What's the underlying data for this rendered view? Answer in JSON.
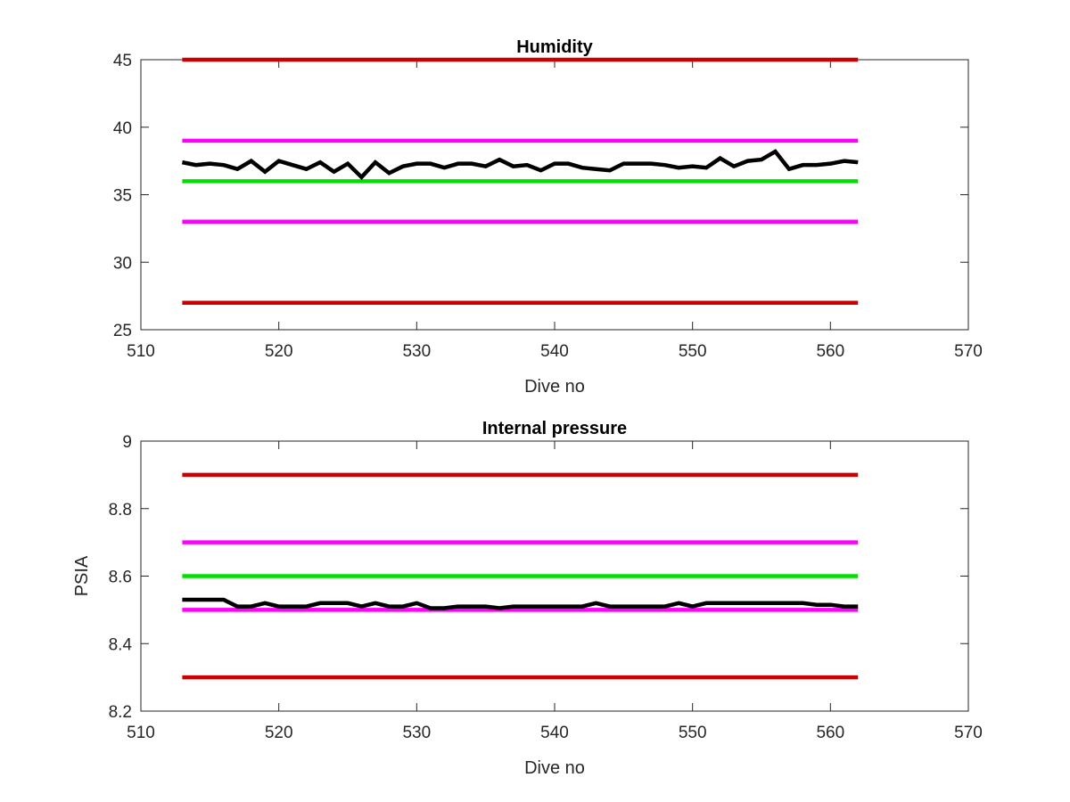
{
  "chart_data": [
    {
      "type": "line",
      "title": "Humidity",
      "xlabel": "Dive no",
      "ylabel": "",
      "xlim": [
        510,
        570
      ],
      "ylim": [
        25,
        45
      ],
      "xticks": [
        510,
        520,
        530,
        540,
        550,
        560,
        570
      ],
      "yticks": [
        25,
        30,
        35,
        40,
        45
      ],
      "grid": false,
      "colors": {
        "red_limit": "#cc0000",
        "magenta_limit": "#ff00ff",
        "green_target": "#00e000",
        "data": "#000000"
      },
      "reference_lines": [
        {
          "y": 45,
          "x": [
            513,
            562
          ],
          "color": "#cc0000"
        },
        {
          "y": 39,
          "x": [
            513,
            562
          ],
          "color": "#ff00ff"
        },
        {
          "y": 36,
          "x": [
            513,
            562
          ],
          "color": "#00e000"
        },
        {
          "y": 33,
          "x": [
            513,
            562
          ],
          "color": "#ff00ff"
        },
        {
          "y": 27,
          "x": [
            513,
            562
          ],
          "color": "#cc0000"
        }
      ],
      "series": [
        {
          "x": [
            513,
            514,
            515,
            516,
            517,
            518,
            519,
            520,
            521,
            522,
            523,
            524,
            525,
            526,
            527,
            528,
            529,
            530,
            531,
            532,
            533,
            534,
            535,
            536,
            537,
            538,
            539,
            540,
            541,
            542,
            543,
            544,
            545,
            546,
            547,
            548,
            549,
            550,
            551,
            552,
            553,
            554,
            555,
            556,
            557,
            558,
            559,
            560,
            561,
            562
          ],
          "values": [
            37.4,
            37.2,
            37.3,
            37.2,
            36.9,
            37.5,
            36.7,
            37.5,
            37.2,
            36.9,
            37.4,
            36.7,
            37.3,
            36.3,
            37.4,
            36.6,
            37.1,
            37.3,
            37.3,
            37.0,
            37.3,
            37.3,
            37.1,
            37.6,
            37.1,
            37.2,
            36.8,
            37.3,
            37.3,
            37.0,
            36.9,
            36.8,
            37.3,
            37.3,
            37.3,
            37.2,
            37.0,
            37.1,
            37.0,
            37.7,
            37.1,
            37.5,
            37.6,
            38.2,
            36.9,
            37.2,
            37.2,
            37.3,
            37.5,
            37.4
          ]
        }
      ]
    },
    {
      "type": "line",
      "title": "Internal pressure",
      "xlabel": "Dive no",
      "ylabel": "PSIA",
      "xlim": [
        510,
        570
      ],
      "ylim": [
        8.2,
        9
      ],
      "xticks": [
        510,
        520,
        530,
        540,
        550,
        560,
        570
      ],
      "yticks": [
        8.2,
        8.4,
        8.6,
        8.8,
        9
      ],
      "grid": false,
      "colors": {
        "red_limit": "#cc0000",
        "magenta_limit": "#ff00ff",
        "green_target": "#00e000",
        "data": "#000000"
      },
      "reference_lines": [
        {
          "y": 8.9,
          "x": [
            513,
            562
          ],
          "color": "#cc0000"
        },
        {
          "y": 8.7,
          "x": [
            513,
            562
          ],
          "color": "#ff00ff"
        },
        {
          "y": 8.6,
          "x": [
            513,
            562
          ],
          "color": "#00e000"
        },
        {
          "y": 8.5,
          "x": [
            513,
            562
          ],
          "color": "#ff00ff"
        },
        {
          "y": 8.3,
          "x": [
            513,
            562
          ],
          "color": "#cc0000"
        }
      ],
      "series": [
        {
          "x": [
            513,
            514,
            515,
            516,
            517,
            518,
            519,
            520,
            521,
            522,
            523,
            524,
            525,
            526,
            527,
            528,
            529,
            530,
            531,
            532,
            533,
            534,
            535,
            536,
            537,
            538,
            539,
            540,
            541,
            542,
            543,
            544,
            545,
            546,
            547,
            548,
            549,
            550,
            551,
            552,
            553,
            554,
            555,
            556,
            557,
            558,
            559,
            560,
            561,
            562
          ],
          "values": [
            8.53,
            8.53,
            8.53,
            8.53,
            8.51,
            8.51,
            8.52,
            8.51,
            8.51,
            8.51,
            8.52,
            8.52,
            8.52,
            8.51,
            8.52,
            8.51,
            8.51,
            8.52,
            8.505,
            8.505,
            8.51,
            8.51,
            8.51,
            8.505,
            8.51,
            8.51,
            8.51,
            8.51,
            8.51,
            8.51,
            8.52,
            8.51,
            8.51,
            8.51,
            8.51,
            8.51,
            8.52,
            8.51,
            8.52,
            8.52,
            8.52,
            8.52,
            8.52,
            8.52,
            8.52,
            8.52,
            8.515,
            8.515,
            8.51,
            8.51
          ]
        }
      ]
    }
  ]
}
